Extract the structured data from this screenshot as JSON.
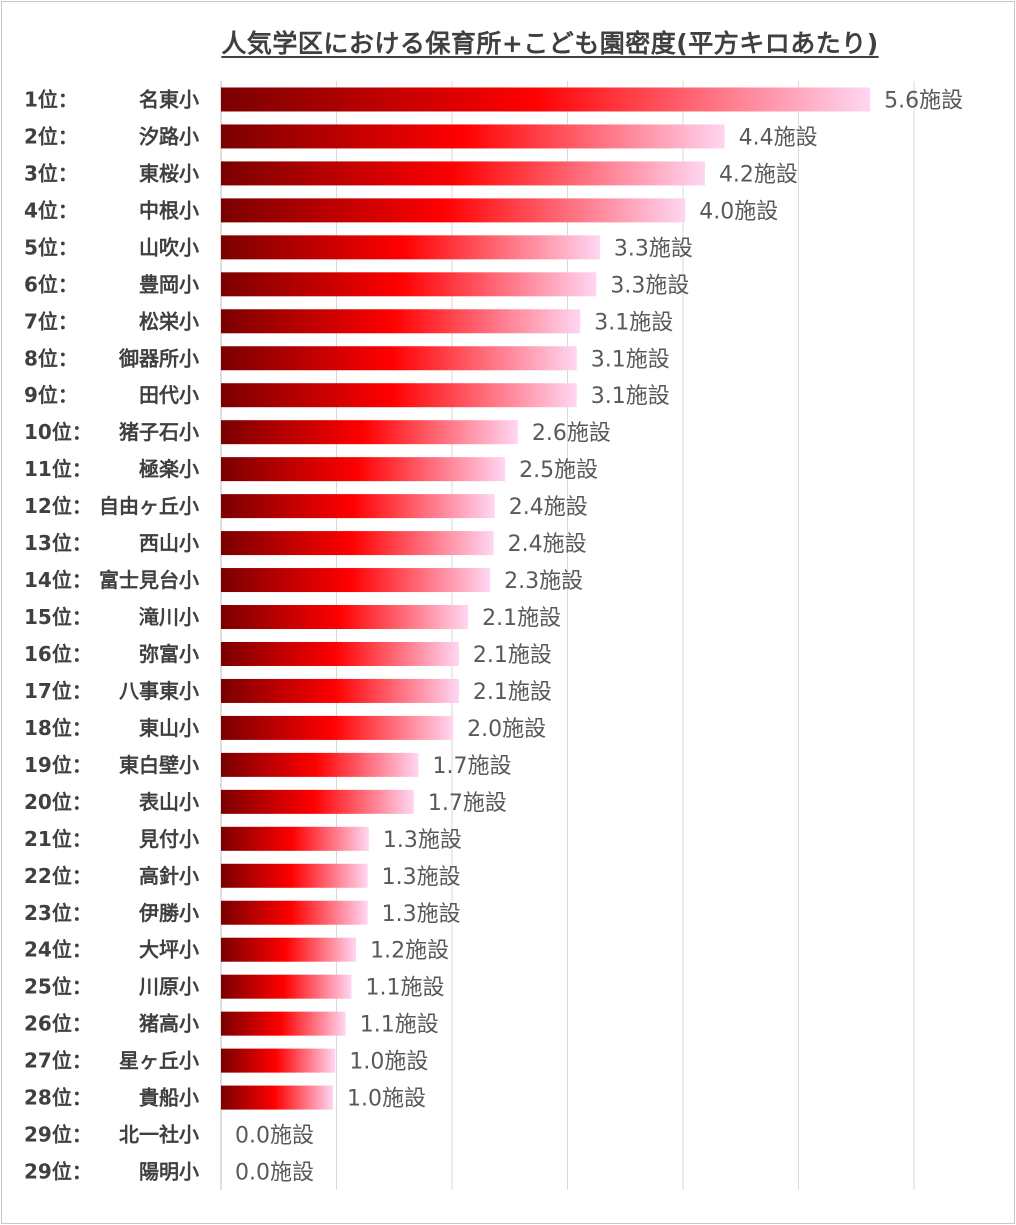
{
  "chart_data": {
    "type": "bar",
    "orientation": "horizontal",
    "title": "人気学区における保育所+こども園密度(平方キロあたり)",
    "value_suffix": "施設",
    "xlim": [
      0,
      6
    ],
    "grid": true,
    "colors": {
      "bar_start": "#7a0000",
      "bar_mid": "#ff0000",
      "bar_end": "#ffd6f2"
    },
    "ranks": [
      "1位：",
      "2位：",
      "3位：",
      "4位：",
      "5位：",
      "6位：",
      "7位：",
      "8位：",
      "9位：",
      "10位：",
      "11位：",
      "12位：",
      "13位：",
      "14位：",
      "15位：",
      "16位：",
      "17位：",
      "18位：",
      "19位：",
      "20位：",
      "21位：",
      "22位：",
      "23位：",
      "24位：",
      "25位：",
      "26位：",
      "27位：",
      "28位：",
      "29位：",
      "29位："
    ],
    "categories": [
      "名東小",
      "汐路小",
      "東桜小",
      "中根小",
      "山吹小",
      "豊岡小",
      "松栄小",
      "御器所小",
      "田代小",
      "猪子石小",
      "極楽小",
      "自由ヶ丘小",
      "西山小",
      "富士見台小",
      "滝川小",
      "弥富小",
      "八事東小",
      "東山小",
      "東白壁小",
      "表山小",
      "見付小",
      "高針小",
      "伊勝小",
      "大坪小",
      "川原小",
      "猪高小",
      "星ヶ丘小",
      "貴船小",
      "北一社小",
      "陽明小"
    ],
    "values": [
      5.62,
      4.36,
      4.19,
      4.02,
      3.28,
      3.25,
      3.11,
      3.08,
      3.08,
      2.57,
      2.46,
      2.37,
      2.36,
      2.33,
      2.14,
      2.06,
      2.06,
      2.01,
      1.71,
      1.67,
      1.28,
      1.27,
      1.27,
      1.17,
      1.13,
      1.08,
      0.99,
      0.97,
      0.0,
      0.0
    ],
    "value_labels": [
      "5.6施設",
      "4.4施設",
      "4.2施設",
      "4.0施設",
      "3.3施設",
      "3.3施設",
      "3.1施設",
      "3.1施設",
      "3.1施設",
      "2.6施設",
      "2.5施設",
      "2.4施設",
      "2.4施設",
      "2.3施設",
      "2.1施設",
      "2.1施設",
      "2.1施設",
      "2.0施設",
      "1.7施設",
      "1.7施設",
      "1.3施設",
      "1.3施設",
      "1.3施設",
      "1.2施設",
      "1.1施設",
      "1.1施設",
      "1.0施設",
      "1.0施設",
      "0.0施設",
      "0.0施設"
    ]
  }
}
